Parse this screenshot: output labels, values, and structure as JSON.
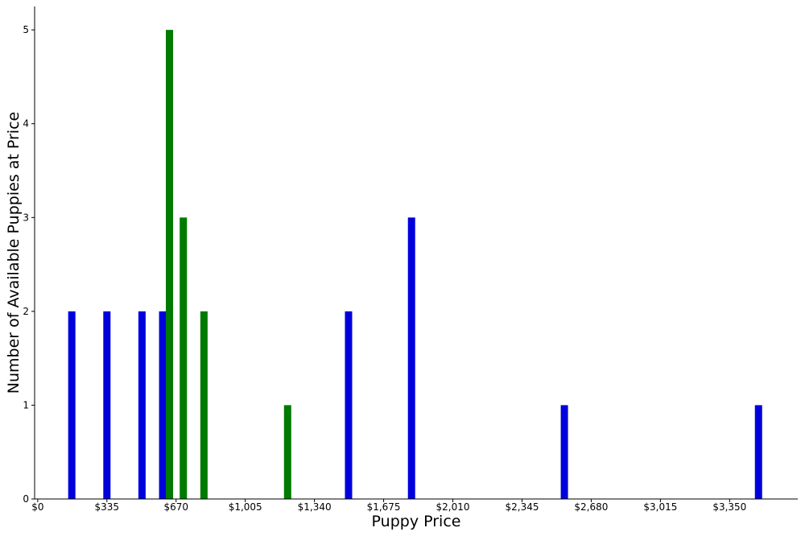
{
  "chart_data": {
    "type": "bar",
    "title": "",
    "xlabel": "Puppy Price",
    "ylabel": "Number of Available Puppies at Price",
    "xlim": [
      -15,
      3680
    ],
    "ylim": [
      0,
      5.25
    ],
    "x_ticks": [
      0,
      335,
      670,
      1005,
      1340,
      1675,
      2010,
      2345,
      2680,
      3015,
      3350
    ],
    "x_tick_labels": [
      "$0",
      "$335",
      "$670",
      "$1,005",
      "$1,340",
      "$1,675",
      "$2,010",
      "$2,345",
      "$2,680",
      "$3,015",
      "$3,350"
    ],
    "y_ticks": [
      0,
      1,
      2,
      3,
      4,
      5
    ],
    "y_tick_labels": [
      "0",
      "1",
      "2",
      "3",
      "4",
      "5"
    ],
    "grid": false,
    "series": [
      {
        "color": "#0000dd",
        "x": [
          165,
          335,
          505,
          605,
          1505,
          1810,
          2550,
          3490
        ],
        "values": [
          2,
          2,
          2,
          2,
          2,
          3,
          1,
          1
        ]
      },
      {
        "color": "#007a00",
        "x": [
          638,
          705,
          805,
          1210
        ],
        "values": [
          5,
          3,
          2,
          1
        ]
      }
    ]
  }
}
